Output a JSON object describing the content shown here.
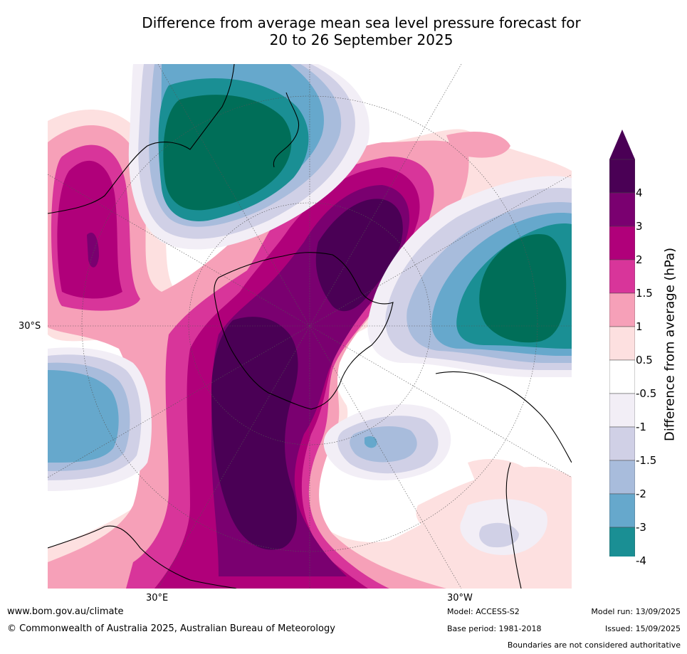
{
  "title": {
    "line1": "Difference from average mean sea level pressure forecast for",
    "line2": "20 to 26 September 2025"
  },
  "axis_labels": {
    "lat_30s": "30°S",
    "lon_30e": "30°E",
    "lon_30w": "30°W"
  },
  "colorbar": {
    "label": "Difference from average (hPa)",
    "ticks": [
      "4",
      "3",
      "2",
      "1.5",
      "1",
      "0.5",
      "-0.5",
      "-1",
      "-1.5",
      "-2",
      "-3",
      "-4"
    ],
    "colors_top_to_bottom": [
      "#4a0055",
      "#7a0070",
      "#b0007a",
      "#d8359a",
      "#f6a0b8",
      "#fde0e0",
      "#ffffff",
      "#f2eef6",
      "#d0d0e6",
      "#a8bcdc",
      "#66a8cc",
      "#1a8f94",
      "#006e58"
    ],
    "extend_top_color": "#4a0055",
    "extend_bottom_color": "#006e58"
  },
  "footer": {
    "website": "www.bom.gov.au/climate",
    "copyright": "© Commonwealth of Australia 2025, Australian Bureau of Meteorology",
    "model": "Model: ACCESS-S2",
    "base_period": "Base period: 1981-2018",
    "model_run": "Model run: 13/09/2025",
    "issued": "Issued: 15/09/2025",
    "disclaimer": "Boundaries are not considered authoritative"
  }
}
